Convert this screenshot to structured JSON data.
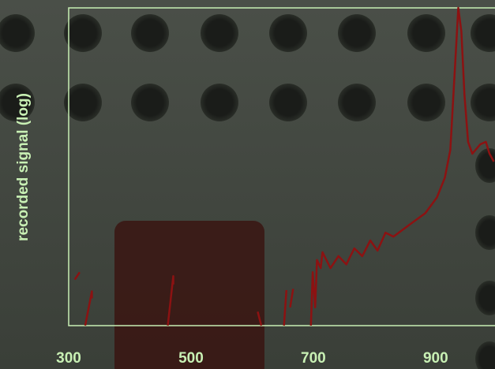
{
  "chart_data": {
    "type": "line",
    "y_label": "recorded signal (log)",
    "log_y": true,
    "color": "#8c1212",
    "x": [
      310,
      318,
      null,
      327,
      338,
      338,
      null,
      462,
      471,
      471,
      null,
      609,
      615,
      null,
      652,
      656,
      null,
      662,
      667,
      null,
      696,
      699,
      703,
      706,
      712,
      715,
      728,
      741,
      754,
      767,
      780,
      793,
      805,
      818,
      831,
      857,
      883,
      902,
      915,
      924,
      932,
      937,
      942,
      947,
      953,
      960,
      973,
      982,
      988,
      995
    ],
    "values": [
      3.8,
      4.7,
      null,
      1,
      2.7,
      2.2,
      null,
      1,
      4.2,
      3.3,
      null,
      1.5,
      1,
      null,
      1,
      2.8,
      null,
      1.7,
      2.9,
      null,
      1,
      4.7,
      1.7,
      6.7,
      5.3,
      8.4,
      5.3,
      7.5,
      5.9,
      9.4,
      7.5,
      11.8,
      8.8,
      14.8,
      13.2,
      18.6,
      26,
      41,
      73,
      163,
      2020,
      10000,
      5040,
      809,
      206,
      146,
      192,
      206,
      146,
      116
    ],
    "xlim": [
      300,
      997
    ],
    "xticks": [
      300,
      500,
      700,
      900
    ],
    "ylim": [
      1,
      10000
    ]
  }
}
